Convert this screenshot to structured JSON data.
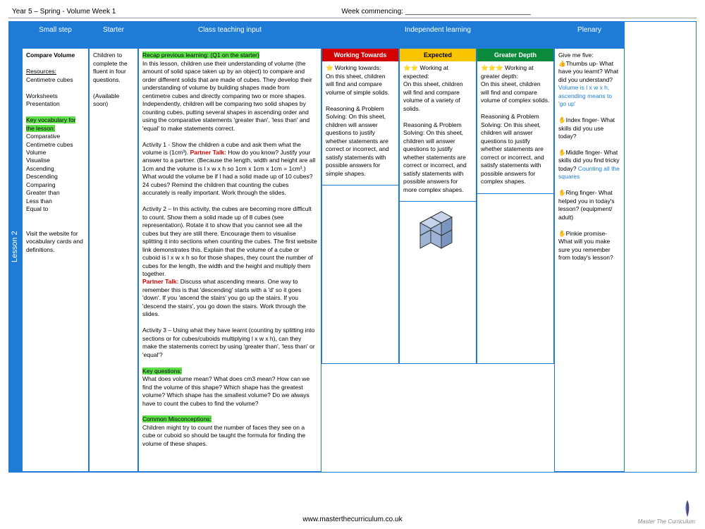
{
  "header": {
    "context": "Year 5 – Spring - Volume Week 1",
    "week": "Week commencing: ________________________________"
  },
  "lesson_tab": "Lesson 2",
  "headers": {
    "small_step": "Small step",
    "starter": "Starter",
    "teaching": "Class teaching input",
    "independent": "Independent learning",
    "plenary": "Plenary"
  },
  "small_step": {
    "title": "Compare Volume",
    "res_label": "Resources:",
    "res1": "Centimetre cubes",
    "res2": "Worksheets",
    "res3": "Presentation",
    "vocab_label": "Key vocabulary for the lesson:",
    "vocab": "Comparative\nCentimetre cubes\nVolume\nVisualise\nAscending\nDescending\nComparing\nGreater than\nLess than\nEqual to",
    "visit": "Visit the website for vocabulary cards and definitions."
  },
  "starter": {
    "text": "Children to complete the fluent in four questions.",
    "avail": "(Available soon)"
  },
  "teaching": {
    "recap": "Recap previous learning: (Q1 on the starter)",
    "intro": "In this lesson, children use their understanding of volume (the amount of solid space taken up by an object) to compare and order different solids that are made of cubes. They develop their understanding of volume by building shapes made from centimetre cubes and directly comparing two or more shapes.\nIndependently, children will be comparing two solid shapes by counting cubes, putting several shapes in ascending order and using the comparative statements 'greater than', 'less than' and 'equal' to make statements correct.",
    "act1a": "Activity 1 - Show the children a cube and ask them what the volume is (1cm³).",
    "pt1": "Partner Talk:",
    "act1b": "How do you know? Justify your answer to a partner. (Because the length, width and height are all 1cm and the volume is l x w x h so 1cm x 1cm x 1cm = 1cm³.) What would the volume be if I had a solid made up of 10 cubes? 24 cubes? Remind the children that counting the cubes accurately is really important. Work through the slides.",
    "act2": "Activity 2 – In this activity, the cubes are becoming more difficult to count. Show them a solid made up of 8 cubes (see representation). Rotate it to show that you cannot see all the cubes but they are still there. Encourage them to visualise splitting it into sections when counting the cubes. The first website link demonstrates this. Explain that the volume of a cube or cuboid is l x w x h so for those shapes, they count the number of cubes for the length, the width and the height and multiply them together.",
    "pt2": "Partner Talk:",
    "act2b": "Discuss what ascending means. One way to remember this is that 'descending' starts with a 'd' so it goes 'down'. If you 'ascend the stairs' you go up the stairs. If you 'descend the stairs', you go down the stairs. Work through the slides.",
    "act3": "Activity 3 – Using what they have learnt (counting by splitting into sections or for cubes/cuboids multiplying l x w x h), can they make the statements correct by using 'greater than', 'less than' or 'equal'?",
    "kq_label": "Key questions:",
    "kq": "What does volume mean? What does cm3 mean? How can we find the volume of this shape? Which shape has the greatest volume? Which shape has the smallest volume? Do we always have to count the cubes to find the volume?",
    "cm_label": "Common Misconceptions:",
    "cm": "Children might try to count the number of faces they see on a cube or cuboid so should be taught the formula for finding the volume of these shapes."
  },
  "independent": {
    "wt": {
      "label": "Working Towards",
      "star": "⭐",
      "title": "Working towards:",
      "p1": "On this sheet, children will find and compare volume of simple solids.",
      "p2": "Reasoning & Problem Solving: On this sheet, children will answer questions to justify whether statements are correct or incorrect, and satisfy statements with possible answers for simple shapes."
    },
    "ex": {
      "label": "Expected",
      "star": "⭐⭐",
      "title": "Working at expected:",
      "p1": "On this sheet, children will find and compare volume of a variety of solids.",
      "p2": "Reasoning & Problem Solving: On this sheet, children will answer questions to justify whether statements are correct or incorrect, and satisfy statements with possible answers for more complex shapes."
    },
    "gd": {
      "label": "Greater Depth",
      "star": "⭐⭐⭐",
      "title": "Working at greater depth:",
      "p1": "On this sheet, children will find and compare volume of complex solids.",
      "p2": "Reasoning & Problem Solving: On this sheet, children will answer questions to justify whether statements are correct or incorrect, and satisfy statements with possible answers for complex shapes."
    }
  },
  "plenary": {
    "intro": "Give me five:",
    "thumb_e": "👍",
    "thumb": "Thumbs up- What have you learnt? What did you understand?",
    "thumb_a": "Volume is l x w x h, ascending means to 'go up'",
    "index_e": "✋",
    "index": "Index finger- What skills did you use today?",
    "middle_e": "✋",
    "middle": "Middle finger- What skills did you find tricky today?",
    "middle_a": "Counting all the squares",
    "ring_e": "✋",
    "ring": "Ring finger- What helped you in today's lesson? (equipment/ adult)",
    "pinkie_e": "✋",
    "pinkie": "Pinkie promise- What will you make sure you remember from today's lesson?"
  },
  "footer": {
    "url": "www.masterthecurriculum.co.uk",
    "brand": "Master The Curriculum"
  }
}
